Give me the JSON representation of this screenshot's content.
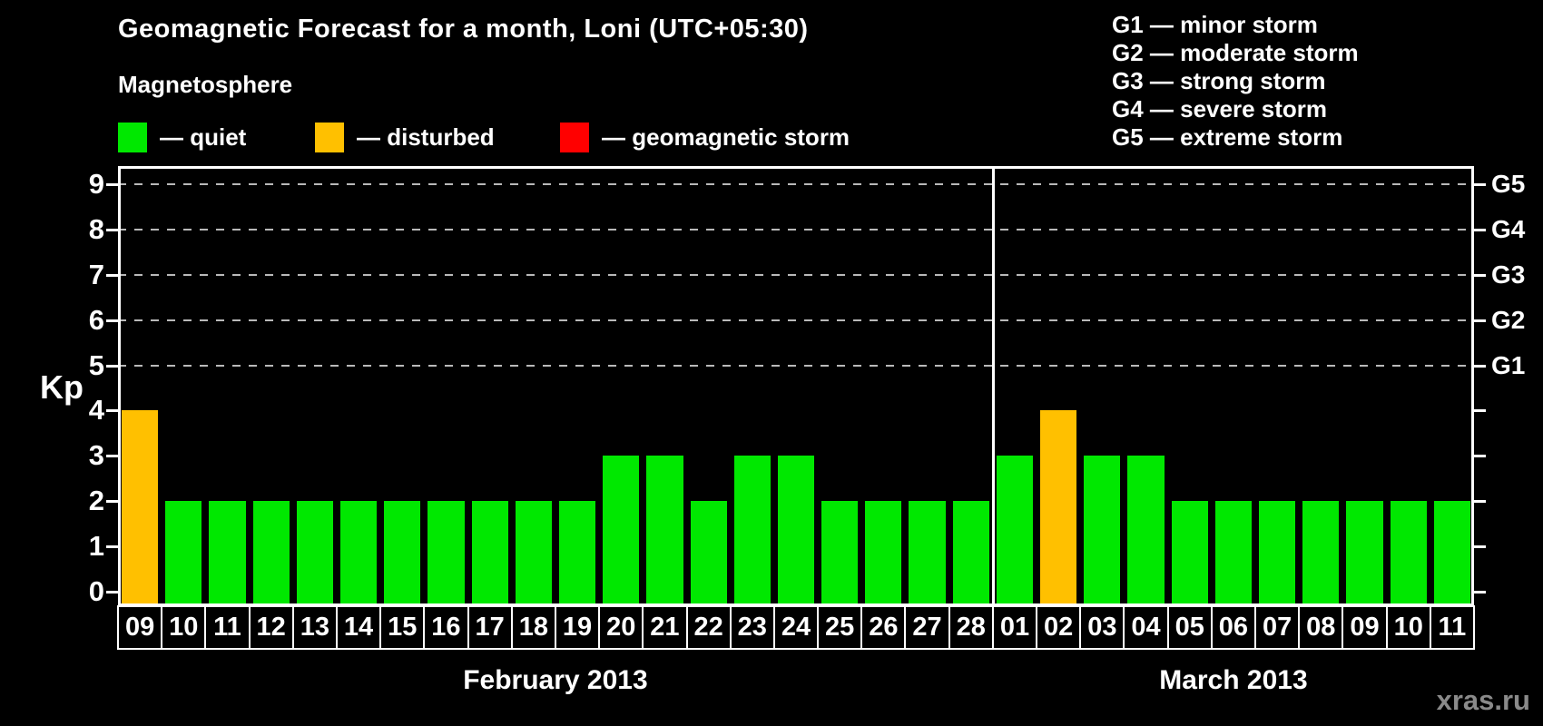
{
  "header": {
    "title": "Geomagnetic Forecast for a month, Loni (UTC+05:30)",
    "subtitle": "Magnetosphere"
  },
  "legend": {
    "items": [
      {
        "label": "— quiet",
        "color": "#00e800",
        "status": "quiet"
      },
      {
        "label": "— disturbed",
        "color": "#ffc000",
        "status": "disturbed"
      },
      {
        "label": "— geomagnetic storm",
        "color": "#ff0000",
        "status": "storm"
      }
    ]
  },
  "g_legend": {
    "items": [
      "G1 — minor storm",
      "G2 — moderate storm",
      "G3 — strong storm",
      "G4 — severe storm",
      "G5 — extreme storm"
    ]
  },
  "watermark": "xras.ru",
  "chart_data": {
    "type": "bar",
    "title": "Geomagnetic Forecast for a month, Loni (UTC+05:30)",
    "ylabel": "Kp",
    "ylim": [
      -0.32,
      9.4
    ],
    "yticks": [
      0,
      1,
      2,
      3,
      4,
      5,
      6,
      7,
      8,
      9
    ],
    "gridlines_at": [
      5,
      6,
      7,
      8,
      9
    ],
    "right_axis_labels": [
      {
        "value": 5,
        "label": "G1"
      },
      {
        "value": 6,
        "label": "G2"
      },
      {
        "value": 7,
        "label": "G3"
      },
      {
        "value": 8,
        "label": "G4"
      },
      {
        "value": 9,
        "label": "G5"
      }
    ],
    "status_colors": {
      "quiet": "#00e800",
      "disturbed": "#ffc000",
      "storm": "#ff0000"
    },
    "groups": [
      {
        "label": "February 2013",
        "days": [
          {
            "day": "09",
            "kp": 4,
            "status": "disturbed"
          },
          {
            "day": "10",
            "kp": 2,
            "status": "quiet"
          },
          {
            "day": "11",
            "kp": 2,
            "status": "quiet"
          },
          {
            "day": "12",
            "kp": 2,
            "status": "quiet"
          },
          {
            "day": "13",
            "kp": 2,
            "status": "quiet"
          },
          {
            "day": "14",
            "kp": 2,
            "status": "quiet"
          },
          {
            "day": "15",
            "kp": 2,
            "status": "quiet"
          },
          {
            "day": "16",
            "kp": 2,
            "status": "quiet"
          },
          {
            "day": "17",
            "kp": 2,
            "status": "quiet"
          },
          {
            "day": "18",
            "kp": 2,
            "status": "quiet"
          },
          {
            "day": "19",
            "kp": 2,
            "status": "quiet"
          },
          {
            "day": "20",
            "kp": 3,
            "status": "quiet"
          },
          {
            "day": "21",
            "kp": 3,
            "status": "quiet"
          },
          {
            "day": "22",
            "kp": 2,
            "status": "quiet"
          },
          {
            "day": "23",
            "kp": 3,
            "status": "quiet"
          },
          {
            "day": "24",
            "kp": 3,
            "status": "quiet"
          },
          {
            "day": "25",
            "kp": 2,
            "status": "quiet"
          },
          {
            "day": "26",
            "kp": 2,
            "status": "quiet"
          },
          {
            "day": "27",
            "kp": 2,
            "status": "quiet"
          },
          {
            "day": "28",
            "kp": 2,
            "status": "quiet"
          }
        ]
      },
      {
        "label": "March 2013",
        "days": [
          {
            "day": "01",
            "kp": 3,
            "status": "quiet"
          },
          {
            "day": "02",
            "kp": 4,
            "status": "disturbed"
          },
          {
            "day": "03",
            "kp": 3,
            "status": "quiet"
          },
          {
            "day": "04",
            "kp": 3,
            "status": "quiet"
          },
          {
            "day": "05",
            "kp": 2,
            "status": "quiet"
          },
          {
            "day": "06",
            "kp": 2,
            "status": "quiet"
          },
          {
            "day": "07",
            "kp": 2,
            "status": "quiet"
          },
          {
            "day": "08",
            "kp": 2,
            "status": "quiet"
          },
          {
            "day": "09",
            "kp": 2,
            "status": "quiet"
          },
          {
            "day": "10",
            "kp": 2,
            "status": "quiet"
          },
          {
            "day": "11",
            "kp": 2,
            "status": "quiet"
          }
        ]
      }
    ]
  }
}
